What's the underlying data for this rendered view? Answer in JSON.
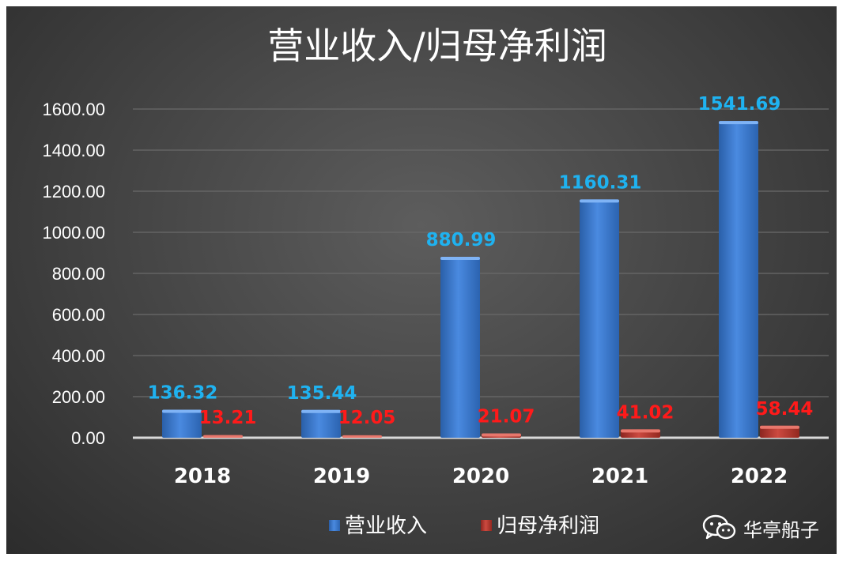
{
  "chart_data": {
    "type": "bar",
    "title": "营业收入/归母净利润",
    "categories": [
      "2018",
      "2019",
      "2020",
      "2021",
      "2022"
    ],
    "series": [
      {
        "name": "营业收入",
        "values": [
          136.32,
          135.44,
          880.99,
          1160.31,
          1541.69
        ],
        "labels": [
          "136.32",
          "135.44",
          "880.99",
          "1160.31",
          "1541.69"
        ],
        "color": "#3a78c8",
        "label_color": "#1fb2f0"
      },
      {
        "name": "归母净利润",
        "values": [
          13.21,
          12.05,
          21.07,
          41.02,
          58.44
        ],
        "labels": [
          "13.21",
          "12.05",
          "21.07",
          "41.02",
          "58.44"
        ],
        "color": "#b3352e",
        "label_color": "#ff1a1a"
      }
    ],
    "y_ticks": [
      "0.00",
      "200.00",
      "400.00",
      "600.00",
      "800.00",
      "1000.00",
      "1200.00",
      "1400.00",
      "1600.00"
    ],
    "ylim": [
      0,
      1600
    ],
    "grid": true,
    "legend_position": "bottom",
    "background": "#474747"
  },
  "watermark": {
    "text": "华亭船子",
    "icon": "wechat-icon"
  }
}
